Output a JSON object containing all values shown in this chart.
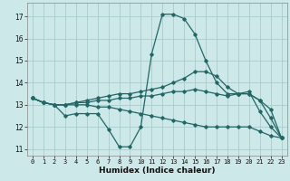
{
  "title": "",
  "xlabel": "Humidex (Indice chaleur)",
  "xlim": [
    -0.5,
    23.5
  ],
  "ylim": [
    10.7,
    17.6
  ],
  "yticks": [
    11,
    12,
    13,
    14,
    15,
    16,
    17
  ],
  "xticks": [
    0,
    1,
    2,
    3,
    4,
    5,
    6,
    7,
    8,
    9,
    10,
    11,
    12,
    13,
    14,
    15,
    16,
    17,
    18,
    19,
    20,
    21,
    22,
    23
  ],
  "xtick_labels": [
    "0",
    "1",
    "2",
    "3",
    "4",
    "5",
    "6",
    "7",
    "8",
    "9",
    "10",
    "11",
    "12",
    "13",
    "14",
    "15",
    "16",
    "17",
    "18",
    "19",
    "20",
    "21",
    "22",
    "23"
  ],
  "bg_color": "#cce8e8",
  "grid_color": "#aacccc",
  "line_color": "#226666",
  "lines": [
    {
      "x": [
        0,
        1,
        2,
        3,
        4,
        5,
        6,
        7,
        8,
        9,
        10,
        11,
        12,
        13,
        14,
        15,
        16,
        17,
        18,
        19,
        20,
        21,
        22,
        23
      ],
      "y": [
        13.3,
        13.1,
        13.0,
        12.5,
        12.6,
        12.6,
        12.6,
        11.9,
        11.1,
        11.1,
        12.0,
        15.3,
        17.1,
        17.1,
        16.9,
        16.2,
        15.0,
        14.0,
        13.5,
        13.5,
        13.6,
        12.7,
        12.0,
        11.5
      ]
    },
    {
      "x": [
        0,
        1,
        2,
        3,
        4,
        5,
        6,
        7,
        8,
        9,
        10,
        11,
        12,
        13,
        14,
        15,
        16,
        17,
        18,
        19,
        20,
        21,
        22,
        23
      ],
      "y": [
        13.3,
        13.1,
        13.0,
        13.0,
        13.1,
        13.2,
        13.3,
        13.4,
        13.5,
        13.5,
        13.6,
        13.7,
        13.8,
        14.0,
        14.2,
        14.5,
        14.5,
        14.3,
        13.8,
        13.5,
        13.5,
        13.2,
        12.8,
        11.5
      ]
    },
    {
      "x": [
        0,
        1,
        2,
        3,
        4,
        5,
        6,
        7,
        8,
        9,
        10,
        11,
        12,
        13,
        14,
        15,
        16,
        17,
        18,
        19,
        20,
        21,
        22,
        23
      ],
      "y": [
        13.3,
        13.1,
        13.0,
        13.0,
        13.1,
        13.1,
        13.2,
        13.2,
        13.3,
        13.3,
        13.4,
        13.4,
        13.5,
        13.6,
        13.6,
        13.7,
        13.6,
        13.5,
        13.4,
        13.5,
        13.5,
        13.2,
        12.4,
        11.5
      ]
    },
    {
      "x": [
        0,
        1,
        2,
        3,
        4,
        5,
        6,
        7,
        8,
        9,
        10,
        11,
        12,
        13,
        14,
        15,
        16,
        17,
        18,
        19,
        20,
        21,
        22,
        23
      ],
      "y": [
        13.3,
        13.1,
        13.0,
        13.0,
        13.0,
        13.0,
        12.9,
        12.9,
        12.8,
        12.7,
        12.6,
        12.5,
        12.4,
        12.3,
        12.2,
        12.1,
        12.0,
        12.0,
        12.0,
        12.0,
        12.0,
        11.8,
        11.6,
        11.5
      ]
    }
  ]
}
